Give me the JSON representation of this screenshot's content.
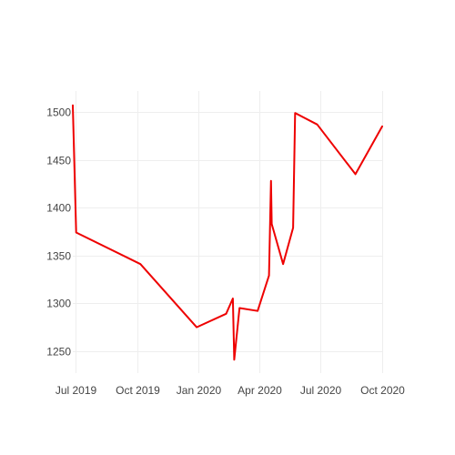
{
  "chart_data": {
    "type": "line",
    "title": "",
    "xlabel": "",
    "ylabel": "",
    "grid": true,
    "legend": "none",
    "x_type": "date",
    "xlim": [
      "2019-06-27",
      "2020-10-01"
    ],
    "ylim": [
      1227,
      1522
    ],
    "x_ticks": [
      {
        "value": "2019-07-01",
        "label": "Jul 2019"
      },
      {
        "value": "2019-10-01",
        "label": "Oct 2019"
      },
      {
        "value": "2020-01-01",
        "label": "Jan 2020"
      },
      {
        "value": "2020-04-01",
        "label": "Apr 2020"
      },
      {
        "value": "2020-07-01",
        "label": "Jul 2020"
      },
      {
        "value": "2020-10-01",
        "label": "Oct 2020"
      }
    ],
    "y_ticks": [
      {
        "value": 1250,
        "label": "1250"
      },
      {
        "value": 1300,
        "label": "1300"
      },
      {
        "value": 1350,
        "label": "1350"
      },
      {
        "value": 1400,
        "label": "1400"
      },
      {
        "value": 1450,
        "label": "1450"
      },
      {
        "value": 1500,
        "label": "1500"
      }
    ],
    "series": [
      {
        "color": "#ee0000",
        "points": [
          {
            "x": "2019-06-27",
            "y": 1507
          },
          {
            "x": "2019-07-02",
            "y": 1374
          },
          {
            "x": "2019-10-06",
            "y": 1341
          },
          {
            "x": "2019-12-29",
            "y": 1275
          },
          {
            "x": "2020-02-11",
            "y": 1289
          },
          {
            "x": "2020-02-21",
            "y": 1305
          },
          {
            "x": "2020-02-23",
            "y": 1241
          },
          {
            "x": "2020-03-02",
            "y": 1295
          },
          {
            "x": "2020-03-29",
            "y": 1292
          },
          {
            "x": "2020-04-15",
            "y": 1329
          },
          {
            "x": "2020-04-18",
            "y": 1428
          },
          {
            "x": "2020-04-19",
            "y": 1383
          },
          {
            "x": "2020-05-06",
            "y": 1341
          },
          {
            "x": "2020-05-21",
            "y": 1379
          },
          {
            "x": "2020-05-24",
            "y": 1499
          },
          {
            "x": "2020-06-26",
            "y": 1487
          },
          {
            "x": "2020-08-22",
            "y": 1435
          },
          {
            "x": "2020-10-01",
            "y": 1485
          }
        ]
      }
    ]
  }
}
